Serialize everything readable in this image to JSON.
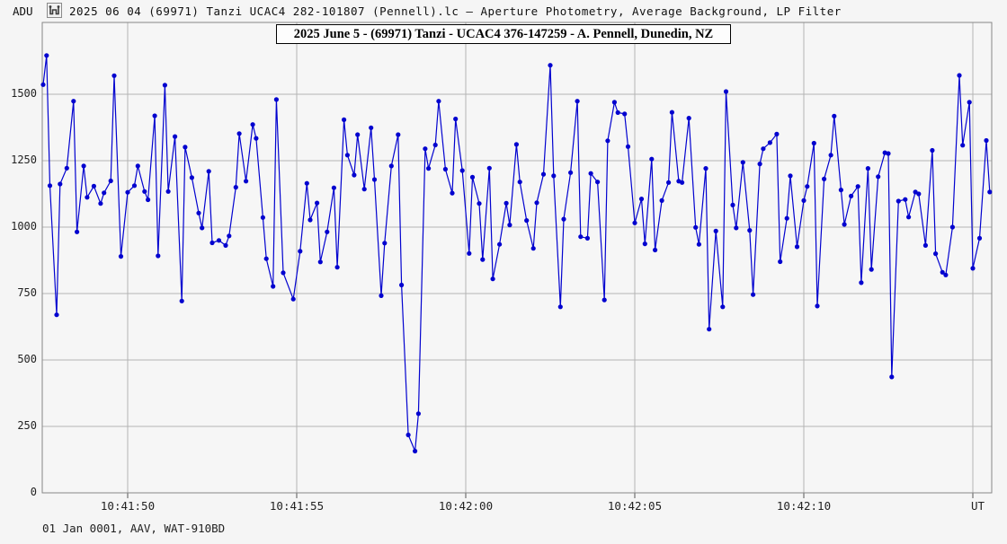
{
  "window": {
    "y_axis_unit": "ADU",
    "title": "2025 06 04 (69971) Tanzi UCAC4 282-101807 (Pennell).lc – Aperture Photometry, Average Background, LP Filter",
    "x_axis_unit": "UT",
    "footer": "01 Jan 0001, AAV, WAT-910BD",
    "app_icon": "lightcurve-dip-icon"
  },
  "chart_data": {
    "type": "line",
    "title": "2025 06 04 (69971) Tanzi UCAC4 282-101807 (Pennell).lc – Aperture Photometry, Average Background, LP Filter",
    "annotation": "2025 June 5 - (69971) Tanzi - UCAC4 376-147259 - A. Pennell, Dunedin, NZ",
    "ylabel": "ADU",
    "xlabel": "UT",
    "footer": "01 Jan 0001, AAV, WAT-910BD",
    "grid": true,
    "legend": "none",
    "ylim": [
      0,
      1770
    ],
    "y_ticks": [
      0,
      250,
      500,
      750,
      1000,
      1250,
      1500
    ],
    "x_ticks": [
      {
        "t": 0,
        "label": "10:41:50"
      },
      {
        "t": 5,
        "label": "10:41:55"
      },
      {
        "t": 10,
        "label": "10:42:00"
      },
      {
        "t": 15,
        "label": "10:42:05"
      },
      {
        "t": 20,
        "label": "10:42:10"
      },
      {
        "t": 25,
        "label": ""
      }
    ],
    "time_reference": "t = seconds after 10:41:50 UT",
    "colors": {
      "line": "#0202cf",
      "marker": "#0202cf",
      "grid": "#b4b4b4",
      "border": "#878787",
      "plot_bg": "#f6f6f6",
      "page_bg": "#f5f5f5"
    },
    "points": [
      [
        -2.5,
        1536
      ],
      [
        -2.4,
        1646
      ],
      [
        -2.3,
        1156
      ],
      [
        -2.1,
        670
      ],
      [
        -2.0,
        1162
      ],
      [
        -1.8,
        1222
      ],
      [
        -1.6,
        1474
      ],
      [
        -1.5,
        982
      ],
      [
        -1.3,
        1230
      ],
      [
        -1.2,
        1112
      ],
      [
        -1.0,
        1154
      ],
      [
        -0.8,
        1089
      ],
      [
        -0.7,
        1129
      ],
      [
        -0.5,
        1174
      ],
      [
        -0.4,
        1570
      ],
      [
        -0.2,
        890
      ],
      [
        0.0,
        1131
      ],
      [
        0.2,
        1156
      ],
      [
        0.3,
        1230
      ],
      [
        0.5,
        1134
      ],
      [
        0.6,
        1103
      ],
      [
        0.8,
        1419
      ],
      [
        0.9,
        892
      ],
      [
        1.1,
        1534
      ],
      [
        1.2,
        1134
      ],
      [
        1.4,
        1341
      ],
      [
        1.6,
        722
      ],
      [
        1.7,
        1301
      ],
      [
        1.9,
        1186
      ],
      [
        2.1,
        1053
      ],
      [
        2.2,
        997
      ],
      [
        2.4,
        1210
      ],
      [
        2.5,
        941
      ],
      [
        2.7,
        950
      ],
      [
        2.9,
        931
      ],
      [
        3.0,
        967
      ],
      [
        3.2,
        1150
      ],
      [
        3.3,
        1352
      ],
      [
        3.5,
        1173
      ],
      [
        3.7,
        1386
      ],
      [
        3.8,
        1334
      ],
      [
        4.0,
        1036
      ],
      [
        4.1,
        881
      ],
      [
        4.3,
        777
      ],
      [
        4.4,
        1480
      ],
      [
        4.6,
        828
      ],
      [
        4.9,
        729
      ],
      [
        5.1,
        909
      ],
      [
        5.3,
        1165
      ],
      [
        5.4,
        1027
      ],
      [
        5.6,
        1091
      ],
      [
        5.7,
        869
      ],
      [
        5.9,
        982
      ],
      [
        6.1,
        1148
      ],
      [
        6.2,
        849
      ],
      [
        6.4,
        1404
      ],
      [
        6.5,
        1271
      ],
      [
        6.7,
        1196
      ],
      [
        6.8,
        1348
      ],
      [
        7.0,
        1143
      ],
      [
        7.2,
        1374
      ],
      [
        7.3,
        1179
      ],
      [
        7.5,
        742
      ],
      [
        7.6,
        940
      ],
      [
        7.8,
        1230
      ],
      [
        8.0,
        1348
      ],
      [
        8.1,
        782
      ],
      [
        8.3,
        218
      ],
      [
        8.5,
        157
      ],
      [
        8.6,
        298
      ],
      [
        8.8,
        1295
      ],
      [
        8.9,
        1221
      ],
      [
        9.1,
        1309
      ],
      [
        9.2,
        1474
      ],
      [
        9.4,
        1218
      ],
      [
        9.6,
        1128
      ],
      [
        9.7,
        1407
      ],
      [
        9.9,
        1213
      ],
      [
        10.1,
        901
      ],
      [
        10.2,
        1188
      ],
      [
        10.4,
        1089
      ],
      [
        10.5,
        878
      ],
      [
        10.7,
        1222
      ],
      [
        10.8,
        805
      ],
      [
        11.0,
        935
      ],
      [
        11.2,
        1090
      ],
      [
        11.3,
        1008
      ],
      [
        11.5,
        1311
      ],
      [
        11.6,
        1170
      ],
      [
        11.8,
        1025
      ],
      [
        12.0,
        920
      ],
      [
        12.1,
        1092
      ],
      [
        12.3,
        1199
      ],
      [
        12.5,
        1609
      ],
      [
        12.6,
        1193
      ],
      [
        12.8,
        700
      ],
      [
        12.9,
        1030
      ],
      [
        13.1,
        1205
      ],
      [
        13.3,
        1474
      ],
      [
        13.4,
        964
      ],
      [
        13.6,
        958
      ],
      [
        13.7,
        1202
      ],
      [
        13.9,
        1170
      ],
      [
        14.1,
        726
      ],
      [
        14.2,
        1325
      ],
      [
        14.4,
        1470
      ],
      [
        14.5,
        1431
      ],
      [
        14.7,
        1426
      ],
      [
        14.8,
        1303
      ],
      [
        15.0,
        1016
      ],
      [
        15.2,
        1106
      ],
      [
        15.3,
        937
      ],
      [
        15.5,
        1256
      ],
      [
        15.6,
        914
      ],
      [
        15.8,
        1100
      ],
      [
        16.0,
        1168
      ],
      [
        16.1,
        1432
      ],
      [
        16.3,
        1173
      ],
      [
        16.4,
        1168
      ],
      [
        16.6,
        1410
      ],
      [
        16.8,
        999
      ],
      [
        16.9,
        935
      ],
      [
        17.1,
        1221
      ],
      [
        17.2,
        616
      ],
      [
        17.4,
        985
      ],
      [
        17.6,
        700
      ],
      [
        17.7,
        1510
      ],
      [
        17.9,
        1083
      ],
      [
        18.0,
        997
      ],
      [
        18.2,
        1244
      ],
      [
        18.4,
        988
      ],
      [
        18.5,
        746
      ],
      [
        18.7,
        1238
      ],
      [
        18.8,
        1295
      ],
      [
        19.0,
        1318
      ],
      [
        19.2,
        1350
      ],
      [
        19.3,
        870
      ],
      [
        19.5,
        1033
      ],
      [
        19.6,
        1193
      ],
      [
        19.8,
        926
      ],
      [
        20.0,
        1100
      ],
      [
        20.1,
        1153
      ],
      [
        20.3,
        1316
      ],
      [
        20.4,
        703
      ],
      [
        20.6,
        1181
      ],
      [
        20.8,
        1271
      ],
      [
        20.9,
        1418
      ],
      [
        21.1,
        1140
      ],
      [
        21.2,
        1010
      ],
      [
        21.4,
        1117
      ],
      [
        21.6,
        1153
      ],
      [
        21.7,
        791
      ],
      [
        21.9,
        1221
      ],
      [
        22.0,
        841
      ],
      [
        22.2,
        1190
      ],
      [
        22.4,
        1280
      ],
      [
        22.5,
        1277
      ],
      [
        22.6,
        436
      ],
      [
        22.8,
        1098
      ],
      [
        23.0,
        1104
      ],
      [
        23.1,
        1038
      ],
      [
        23.3,
        1132
      ],
      [
        23.4,
        1125
      ],
      [
        23.6,
        931
      ],
      [
        23.8,
        1289
      ],
      [
        23.9,
        900
      ],
      [
        24.1,
        830
      ],
      [
        24.2,
        820
      ],
      [
        24.4,
        1000
      ],
      [
        24.6,
        1571
      ],
      [
        24.7,
        1308
      ],
      [
        24.9,
        1470
      ],
      [
        25.0,
        845
      ],
      [
        25.2,
        958
      ],
      [
        25.4,
        1326
      ],
      [
        25.5,
        1132
      ]
    ]
  }
}
